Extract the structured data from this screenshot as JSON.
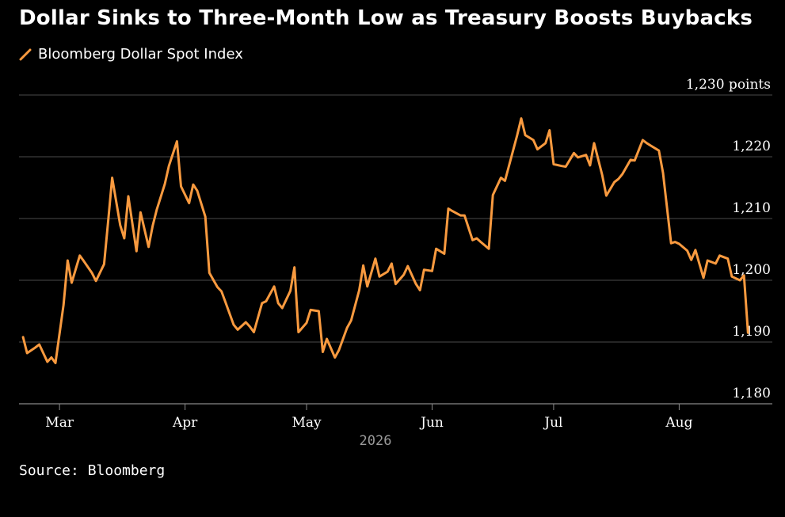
{
  "title": "Dollar Sinks to Three-Month Low as Treasury Boosts Buybacks",
  "source": "Source: Bloomberg",
  "colors": {
    "series": "#f99a3f",
    "grid": "#4a4a4a",
    "axis": "#888888"
  },
  "chart_data": {
    "type": "line",
    "title": "Dollar Sinks to Three-Month Low as Treasury Boosts Buybacks",
    "ylabel": "",
    "xlabel": "2026",
    "ylim": [
      1180,
      1230
    ],
    "yticks": [
      {
        "value": 1230,
        "label": "1,230 points"
      },
      {
        "value": 1220,
        "label": "1,220"
      },
      {
        "value": 1210,
        "label": "1,210"
      },
      {
        "value": 1200,
        "label": "1,200"
      },
      {
        "value": 1190,
        "label": "1,190"
      },
      {
        "value": 1180,
        "label": "1,180"
      }
    ],
    "xticks": [
      {
        "date": "2026-03-01",
        "label": "Mar"
      },
      {
        "date": "2026-04-01",
        "label": "Apr"
      },
      {
        "date": "2026-05-01",
        "label": "May"
      },
      {
        "date": "2026-06-01",
        "label": "Jun"
      },
      {
        "date": "2026-07-01",
        "label": "Jul"
      },
      {
        "date": "2026-08-01",
        "label": "Aug"
      }
    ],
    "xlim": [
      "2026-02-19",
      "2026-08-24"
    ],
    "grid": "horizontal",
    "legend": "top-left",
    "series": [
      {
        "name": "Bloomberg Dollar Spot Index",
        "points": [
          [
            "2026-02-20",
            1190.8
          ],
          [
            "2026-02-21",
            1188.2
          ],
          [
            "2026-02-23",
            1189.1
          ],
          [
            "2026-02-24",
            1189.6
          ],
          [
            "2026-02-26",
            1186.8
          ],
          [
            "2026-02-27",
            1187.5
          ],
          [
            "2026-02-28",
            1186.6
          ],
          [
            "2026-03-02",
            1196.0
          ],
          [
            "2026-03-03",
            1203.2
          ],
          [
            "2026-03-04",
            1199.6
          ],
          [
            "2026-03-06",
            1204.0
          ],
          [
            "2026-03-07",
            1203.1
          ],
          [
            "2026-03-09",
            1201.2
          ],
          [
            "2026-03-10",
            1199.9
          ],
          [
            "2026-03-12",
            1202.6
          ],
          [
            "2026-03-13",
            1209.5
          ],
          [
            "2026-03-14",
            1216.6
          ],
          [
            "2026-03-16",
            1208.9
          ],
          [
            "2026-03-17",
            1206.8
          ],
          [
            "2026-03-18",
            1213.6
          ],
          [
            "2026-03-20",
            1204.7
          ],
          [
            "2026-03-21",
            1211.0
          ],
          [
            "2026-03-23",
            1205.4
          ],
          [
            "2026-03-24",
            1208.8
          ],
          [
            "2026-03-25",
            1211.4
          ],
          [
            "2026-03-27",
            1215.6
          ],
          [
            "2026-03-28",
            1218.5
          ],
          [
            "2026-03-30",
            1222.5
          ],
          [
            "2026-03-31",
            1215.2
          ],
          [
            "2026-04-02",
            1212.5
          ],
          [
            "2026-04-03",
            1215.5
          ],
          [
            "2026-04-04",
            1214.5
          ],
          [
            "2026-04-06",
            1210.3
          ],
          [
            "2026-04-07",
            1201.2
          ],
          [
            "2026-04-09",
            1198.9
          ],
          [
            "2026-04-10",
            1198.2
          ],
          [
            "2026-04-11",
            1196.4
          ],
          [
            "2026-04-13",
            1192.8
          ],
          [
            "2026-04-14",
            1192.0
          ],
          [
            "2026-04-16",
            1193.2
          ],
          [
            "2026-04-17",
            1192.5
          ],
          [
            "2026-04-18",
            1191.6
          ],
          [
            "2026-04-20",
            1196.3
          ],
          [
            "2026-04-21",
            1196.6
          ],
          [
            "2026-04-23",
            1199.0
          ],
          [
            "2026-04-24",
            1196.3
          ],
          [
            "2026-04-25",
            1195.5
          ],
          [
            "2026-04-27",
            1198.3
          ],
          [
            "2026-04-28",
            1202.1
          ],
          [
            "2026-04-29",
            1191.6
          ],
          [
            "2026-05-01",
            1193.1
          ],
          [
            "2026-05-02",
            1195.2
          ],
          [
            "2026-05-04",
            1195.0
          ],
          [
            "2026-05-05",
            1188.4
          ],
          [
            "2026-05-06",
            1190.5
          ],
          [
            "2026-05-08",
            1187.5
          ],
          [
            "2026-05-09",
            1188.7
          ],
          [
            "2026-05-11",
            1192.3
          ],
          [
            "2026-05-12",
            1193.5
          ],
          [
            "2026-05-14",
            1198.4
          ],
          [
            "2026-05-15",
            1202.4
          ],
          [
            "2026-05-16",
            1199.0
          ],
          [
            "2026-05-18",
            1203.5
          ],
          [
            "2026-05-19",
            1200.6
          ],
          [
            "2026-05-21",
            1201.4
          ],
          [
            "2026-05-22",
            1202.7
          ],
          [
            "2026-05-23",
            1199.4
          ],
          [
            "2026-05-25",
            1200.9
          ],
          [
            "2026-05-26",
            1202.3
          ],
          [
            "2026-05-28",
            1199.4
          ],
          [
            "2026-05-29",
            1198.4
          ],
          [
            "2026-05-30",
            1201.7
          ],
          [
            "2026-06-01",
            1201.5
          ],
          [
            "2026-06-02",
            1205.1
          ],
          [
            "2026-06-04",
            1204.3
          ],
          [
            "2026-06-05",
            1211.6
          ],
          [
            "2026-06-06",
            1211.2
          ],
          [
            "2026-06-08",
            1210.5
          ],
          [
            "2026-06-09",
            1210.5
          ],
          [
            "2026-06-11",
            1206.5
          ],
          [
            "2026-06-12",
            1206.8
          ],
          [
            "2026-06-13",
            1206.2
          ],
          [
            "2026-06-15",
            1205.1
          ],
          [
            "2026-06-16",
            1213.8
          ],
          [
            "2026-06-18",
            1216.6
          ],
          [
            "2026-06-19",
            1216.1
          ],
          [
            "2026-06-20",
            1218.6
          ],
          [
            "2026-06-22",
            1223.5
          ],
          [
            "2026-06-23",
            1226.2
          ],
          [
            "2026-06-24",
            1223.5
          ],
          [
            "2026-06-26",
            1222.7
          ],
          [
            "2026-06-27",
            1221.2
          ],
          [
            "2026-06-29",
            1222.2
          ],
          [
            "2026-06-30",
            1224.3
          ],
          [
            "2026-07-01",
            1218.8
          ],
          [
            "2026-07-03",
            1218.5
          ],
          [
            "2026-07-04",
            1218.4
          ],
          [
            "2026-07-06",
            1220.6
          ],
          [
            "2026-07-07",
            1219.9
          ],
          [
            "2026-07-09",
            1220.3
          ],
          [
            "2026-07-10",
            1218.6
          ],
          [
            "2026-07-11",
            1222.2
          ],
          [
            "2026-07-13",
            1217.0
          ],
          [
            "2026-07-14",
            1213.7
          ],
          [
            "2026-07-16",
            1215.9
          ],
          [
            "2026-07-17",
            1216.4
          ],
          [
            "2026-07-18",
            1217.2
          ],
          [
            "2026-07-20",
            1219.5
          ],
          [
            "2026-07-21",
            1219.4
          ],
          [
            "2026-07-23",
            1222.7
          ],
          [
            "2026-07-24",
            1222.2
          ],
          [
            "2026-07-25",
            1221.8
          ],
          [
            "2026-07-27",
            1221.0
          ],
          [
            "2026-07-28",
            1217.4
          ],
          [
            "2026-07-30",
            1206.0
          ],
          [
            "2026-07-31",
            1206.2
          ],
          [
            "2026-08-01",
            1205.9
          ],
          [
            "2026-08-03",
            1204.8
          ],
          [
            "2026-08-04",
            1203.3
          ],
          [
            "2026-08-05",
            1204.9
          ],
          [
            "2026-08-07",
            1200.4
          ],
          [
            "2026-08-08",
            1203.2
          ],
          [
            "2026-08-10",
            1202.7
          ],
          [
            "2026-08-11",
            1204.0
          ],
          [
            "2026-08-13",
            1203.5
          ],
          [
            "2026-08-14",
            1200.6
          ],
          [
            "2026-08-16",
            1200.0
          ],
          [
            "2026-08-17",
            1200.8
          ],
          [
            "2026-08-18",
            1191.5
          ]
        ]
      }
    ]
  }
}
